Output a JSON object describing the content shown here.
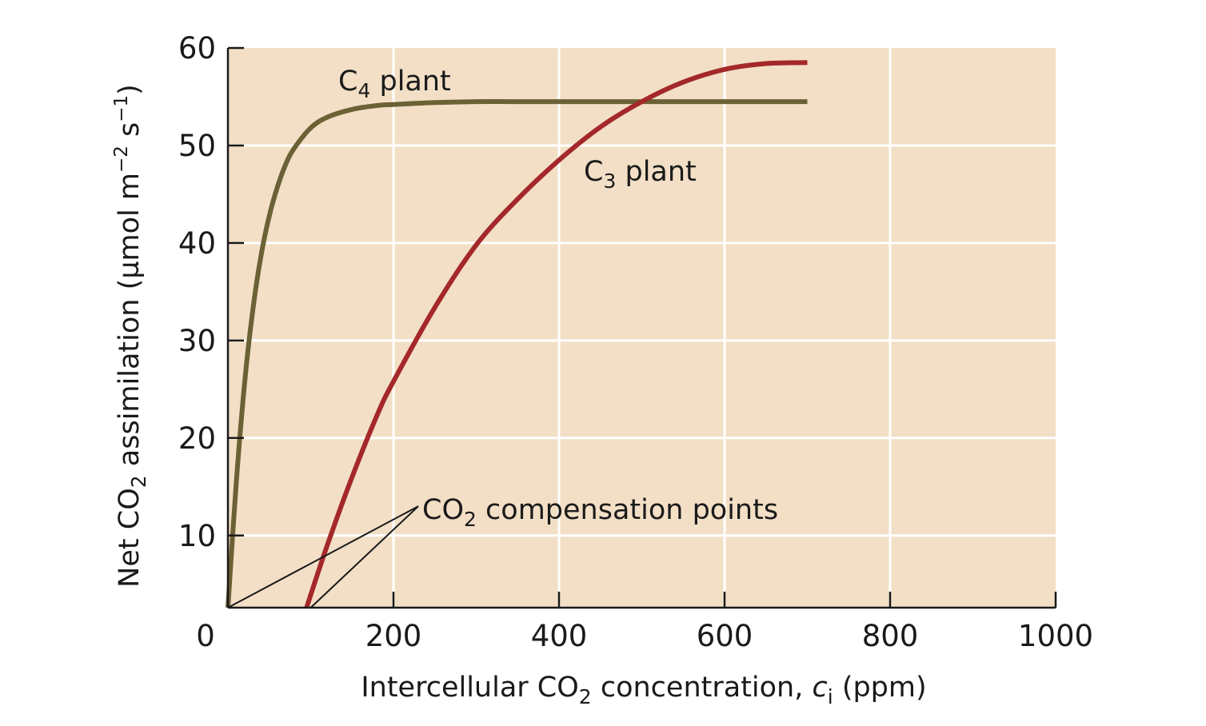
{
  "chart_data": {
    "type": "line",
    "title": "",
    "xlabel": {
      "prefix": "Intercellular CO",
      "sub": "2",
      "middle": " concentration, ",
      "var": "c",
      "var_sub": "i",
      "suffix": " (ppm)"
    },
    "ylabel": {
      "prefix": "Net CO",
      "sub": "2",
      "middle": " assimilation (µmol m",
      "sup1": "−2",
      "middle2": " s",
      "sup2": "−1",
      "suffix": ")"
    },
    "xlim": [
      0,
      1000
    ],
    "ylim": [
      0,
      60
    ],
    "y_axis_floor_value": 2.6,
    "xticks": [
      0,
      200,
      400,
      600,
      800,
      1000
    ],
    "xtick_labels": [
      "0",
      "200",
      "400",
      "600",
      "800",
      "1000"
    ],
    "yticks": [
      10,
      20,
      30,
      40,
      50,
      60
    ],
    "ytick_labels": [
      "10",
      "20",
      "30",
      "40",
      "50",
      "60"
    ],
    "grid": true,
    "colors": {
      "background": "#f2dfc6",
      "grid": "#ffffff",
      "axis": "#1a1a1a",
      "c4": "#6b6135",
      "c3": "#a4282a",
      "annotation": "#1a1a1a"
    },
    "series": [
      {
        "name": "C4 plant",
        "label_main": "C",
        "label_sub": "4",
        "label_suffix": " plant",
        "x": [
          0,
          10,
          20,
          30,
          40,
          50,
          60,
          70,
          80,
          100,
          120,
          150,
          180,
          200,
          250,
          300,
          350,
          400,
          500,
          600,
          700
        ],
        "y": [
          2.6,
          15.4,
          25.5,
          33.1,
          38.7,
          42.8,
          45.8,
          48.1,
          49.7,
          51.8,
          52.9,
          53.7,
          54.1,
          54.2,
          54.4,
          54.5,
          54.5,
          54.5,
          54.5,
          54.5,
          54.5
        ]
      },
      {
        "name": "C3 plant",
        "label_main": "C",
        "label_sub": "3",
        "label_suffix": " plant",
        "x": [
          95,
          120,
          150,
          180,
          200,
          250,
          300,
          350,
          400,
          450,
          500,
          550,
          600,
          650,
          700
        ],
        "y": [
          2.6,
          9.0,
          16.0,
          22.3,
          25.8,
          33.4,
          39.8,
          44.5,
          48.5,
          51.9,
          54.5,
          56.5,
          57.8,
          58.4,
          58.5
        ]
      }
    ],
    "annotations": {
      "compensation": {
        "prefix": "CO",
        "sub": "2",
        "suffix": " compensation points",
        "anchor": [
          230,
          13
        ],
        "targets": [
          [
            0,
            2.6
          ],
          [
            100,
            2.6
          ]
        ]
      }
    }
  }
}
